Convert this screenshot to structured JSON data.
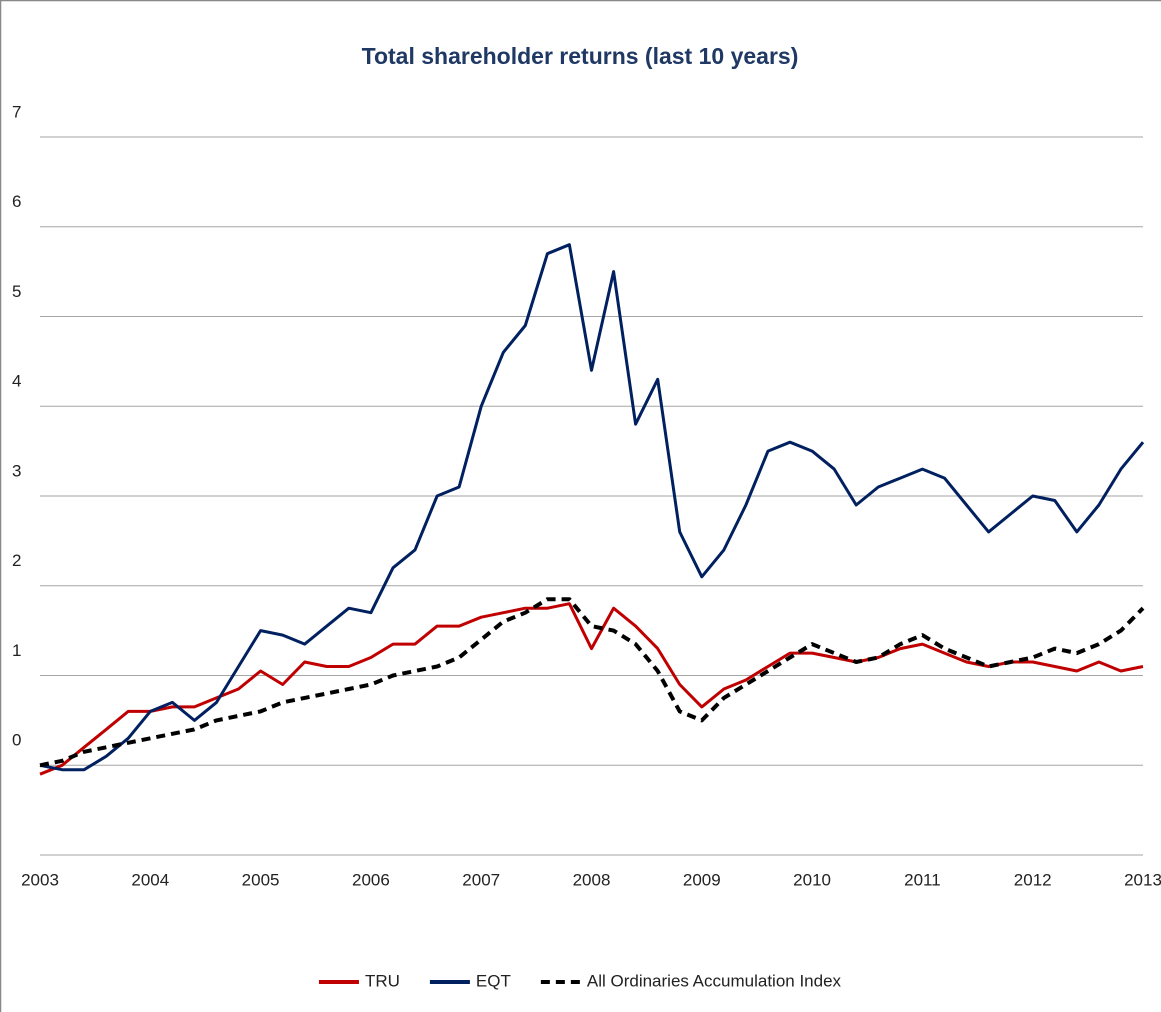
{
  "chart_data": {
    "type": "line",
    "title": "Total shareholder returns (last 10 years)",
    "x": [
      2003.0,
      2003.2,
      2003.4,
      2003.6,
      2003.8,
      2004.0,
      2004.2,
      2004.4,
      2004.6,
      2004.8,
      2005.0,
      2005.2,
      2005.4,
      2005.6,
      2005.8,
      2006.0,
      2006.2,
      2006.4,
      2006.6,
      2006.8,
      2007.0,
      2007.2,
      2007.4,
      2007.6,
      2007.8,
      2008.0,
      2008.2,
      2008.4,
      2008.6,
      2008.8,
      2009.0,
      2009.2,
      2009.4,
      2009.6,
      2009.8,
      2010.0,
      2010.2,
      2010.4,
      2010.6,
      2010.8,
      2011.0,
      2011.2,
      2011.4,
      2011.6,
      2011.8,
      2012.0,
      2012.2,
      2012.4,
      2012.6,
      2012.8,
      2013.0
    ],
    "series": [
      {
        "name": "TRU",
        "color": "#c00000",
        "style": "solid",
        "values": [
          -0.1,
          0.0,
          0.2,
          0.4,
          0.6,
          0.6,
          0.65,
          0.65,
          0.75,
          0.85,
          1.05,
          0.9,
          1.15,
          1.1,
          1.1,
          1.2,
          1.35,
          1.35,
          1.55,
          1.55,
          1.65,
          1.7,
          1.75,
          1.75,
          1.8,
          1.3,
          1.75,
          1.55,
          1.3,
          0.9,
          0.65,
          0.85,
          0.95,
          1.1,
          1.25,
          1.25,
          1.2,
          1.15,
          1.2,
          1.3,
          1.35,
          1.25,
          1.15,
          1.1,
          1.15,
          1.15,
          1.1,
          1.05,
          1.15,
          1.05,
          1.1
        ]
      },
      {
        "name": "EQT",
        "color": "#002060",
        "style": "solid",
        "values": [
          0.0,
          -0.05,
          -0.05,
          0.1,
          0.3,
          0.6,
          0.7,
          0.5,
          0.7,
          1.1,
          1.5,
          1.45,
          1.35,
          1.55,
          1.75,
          1.7,
          2.2,
          2.4,
          3.0,
          3.1,
          4.0,
          4.6,
          4.9,
          5.7,
          5.8,
          4.4,
          5.5,
          3.8,
          4.3,
          2.6,
          2.1,
          2.4,
          2.9,
          3.5,
          3.6,
          3.5,
          3.3,
          2.9,
          3.1,
          3.2,
          3.3,
          3.2,
          2.9,
          2.6,
          2.8,
          3.0,
          2.95,
          2.6,
          2.9,
          3.3,
          3.6
        ]
      },
      {
        "name": "All Ordinaries Accumulation Index",
        "color": "#000000",
        "style": "dashed",
        "values": [
          0.0,
          0.05,
          0.15,
          0.2,
          0.25,
          0.3,
          0.35,
          0.4,
          0.5,
          0.55,
          0.6,
          0.7,
          0.75,
          0.8,
          0.85,
          0.9,
          1.0,
          1.05,
          1.1,
          1.2,
          1.4,
          1.6,
          1.7,
          1.85,
          1.85,
          1.55,
          1.5,
          1.35,
          1.05,
          0.6,
          0.5,
          0.75,
          0.9,
          1.05,
          1.2,
          1.35,
          1.25,
          1.15,
          1.2,
          1.35,
          1.45,
          1.3,
          1.2,
          1.1,
          1.15,
          1.2,
          1.3,
          1.25,
          1.35,
          1.5,
          1.75
        ]
      }
    ],
    "xlim": [
      2003,
      2013
    ],
    "xticks": [
      2003,
      2004,
      2005,
      2006,
      2007,
      2008,
      2009,
      2010,
      2011,
      2012,
      2013
    ],
    "ylim": [
      -1,
      7
    ],
    "yticks": [
      0,
      1,
      2,
      3,
      4,
      5,
      6,
      7
    ],
    "grid": true,
    "legend": "bottom"
  }
}
